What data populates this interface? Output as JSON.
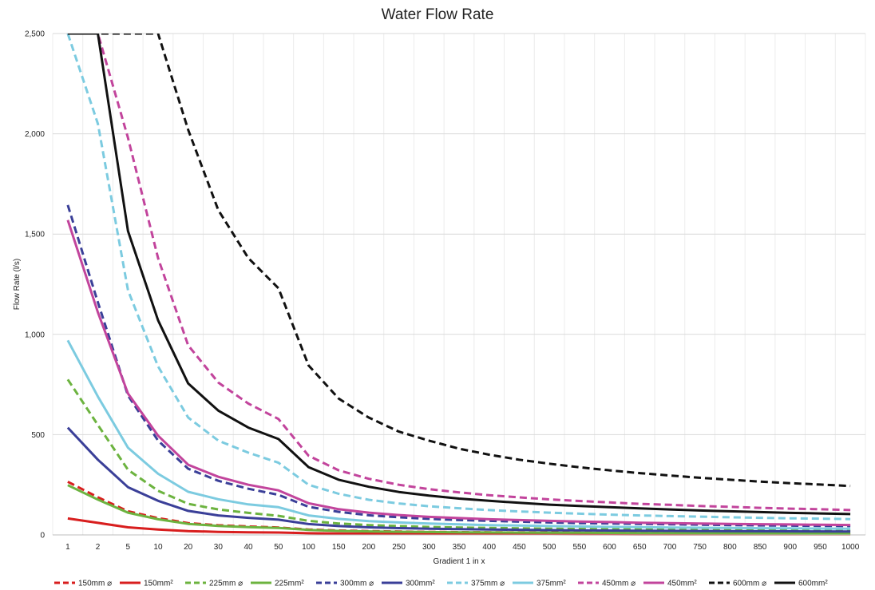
{
  "chart_data": {
    "type": "line",
    "title": "Water Flow Rate",
    "xlabel": "Gradient 1 in x",
    "ylabel": "Flow Rate (l/s)",
    "ylim": [
      0,
      2500
    ],
    "yticks": [
      0,
      500,
      1000,
      1500,
      2000,
      2500
    ],
    "ytick_labels": [
      "0",
      "500",
      "1,000",
      "1,500",
      "2,000",
      "2,500"
    ],
    "grid": true,
    "legend_position": "bottom",
    "categories": [
      "1",
      "2",
      "5",
      "10",
      "20",
      "30",
      "40",
      "50",
      "100",
      "150",
      "200",
      "250",
      "300",
      "350",
      "400",
      "450",
      "500",
      "550",
      "600",
      "650",
      "700",
      "750",
      "800",
      "850",
      "900",
      "950",
      "1000"
    ],
    "series": [
      {
        "name": "150mm ⌀",
        "color": "#d81e1e",
        "dash": true,
        "values": [
          265,
          188,
          118,
          84,
          59,
          48,
          42,
          37,
          27,
          22,
          19,
          17,
          15,
          14,
          13,
          12.5,
          12,
          11.5,
          11,
          10.5,
          10,
          9.7,
          9.4,
          9.1,
          8.8,
          8.6,
          8.4
        ]
      },
      {
        "name": "150mm²",
        "color": "#d81e1e",
        "dash": false,
        "values": [
          82,
          60,
          38,
          27,
          19,
          15,
          13,
          12,
          8.5,
          7,
          6,
          5.4,
          4.9,
          4.5,
          4.2,
          4,
          3.8,
          3.6,
          3.4,
          3.3,
          3.2,
          3.1,
          3,
          2.9,
          2.8,
          2.7,
          2.6
        ]
      },
      {
        "name": "225mm ⌀",
        "color": "#6cb33f",
        "dash": true,
        "values": [
          775,
          548,
          325,
          220,
          155,
          127,
          110,
          95,
          70,
          57,
          49,
          44,
          40,
          37,
          35,
          33,
          31,
          30,
          28.5,
          27.5,
          26.5,
          25.5,
          24.5,
          23.8,
          23,
          22.5,
          22
        ]
      },
      {
        "name": "225mm²",
        "color": "#6cb33f",
        "dash": false,
        "values": [
          248,
          176,
          111,
          78,
          55,
          45,
          39,
          35,
          25,
          20,
          17.5,
          15.7,
          14.3,
          13.3,
          12.4,
          11.7,
          11.1,
          10.6,
          10.1,
          9.7,
          9.4,
          9,
          8.8,
          8.5,
          8.3,
          8,
          7.8
        ]
      },
      {
        "name": "300mm ⌀",
        "color": "#3a3f98",
        "dash": true,
        "values": [
          1645,
          1160,
          695,
          470,
          330,
          270,
          230,
          200,
          140,
          115,
          98,
          88,
          80,
          74,
          70,
          66,
          62,
          59,
          57,
          55,
          53,
          51,
          49,
          47.5,
          46,
          45,
          44
        ]
      },
      {
        "name": "300mm²",
        "color": "#3a3f98",
        "dash": false,
        "values": [
          535,
          375,
          238,
          170,
          120,
          97,
          85,
          76,
          54,
          44,
          38,
          34,
          31,
          29,
          27,
          25.5,
          24,
          23,
          22,
          21,
          20.3,
          19.6,
          19,
          18.4,
          17.9,
          17.4,
          17
        ]
      },
      {
        "name": "375mm ⌀",
        "color": "#7ccbe0",
        "dash": true,
        "values": [
          2500,
          2050,
          1220,
          840,
          585,
          470,
          410,
          360,
          250,
          205,
          175,
          157,
          143,
          133,
          124,
          117,
          111,
          106,
          101,
          97,
          94,
          91,
          88,
          85,
          83,
          81,
          79
        ]
      },
      {
        "name": "375mm²",
        "color": "#7ccbe0",
        "dash": false,
        "values": [
          970,
          690,
          435,
          305,
          215,
          178,
          152,
          138,
          97,
          80,
          69,
          62,
          57,
          53,
          49,
          46.5,
          44,
          42,
          40,
          38.5,
          37,
          36,
          34.5,
          33.5,
          32.5,
          31.5,
          31
        ]
      },
      {
        "name": "450mm ⌀",
        "color": "#c2449c",
        "dash": true,
        "values": [
          2500,
          2500,
          1980,
          1380,
          945,
          760,
          655,
          578,
          395,
          322,
          280,
          250,
          228,
          212,
          198,
          187,
          177,
          169,
          162,
          155,
          150,
          144,
          140,
          135,
          131,
          128,
          124
        ]
      },
      {
        "name": "450mm²",
        "color": "#c2449c",
        "dash": false,
        "values": [
          1570,
          1110,
          705,
          495,
          350,
          290,
          250,
          222,
          158,
          128,
          111,
          99,
          90,
          84,
          78,
          74,
          70,
          67,
          64,
          61,
          59,
          57,
          55,
          53.5,
          52,
          50.5,
          49.5
        ]
      },
      {
        "name": "600mm ⌀",
        "color": "#111111",
        "dash": true,
        "values": [
          2500,
          2500,
          2500,
          2500,
          2020,
          1620,
          1380,
          1230,
          845,
          680,
          585,
          515,
          470,
          430,
          400,
          375,
          355,
          337,
          322,
          308,
          296,
          285,
          275,
          266,
          258,
          251,
          244
        ]
      },
      {
        "name": "600mm²",
        "color": "#111111",
        "dash": false,
        "values": [
          2500,
          2500,
          1515,
          1070,
          755,
          620,
          535,
          478,
          338,
          275,
          240,
          214,
          196,
          181,
          170,
          160,
          151,
          144,
          138,
          132,
          127,
          122,
          118,
          114,
          110,
          107,
          104
        ]
      }
    ]
  }
}
